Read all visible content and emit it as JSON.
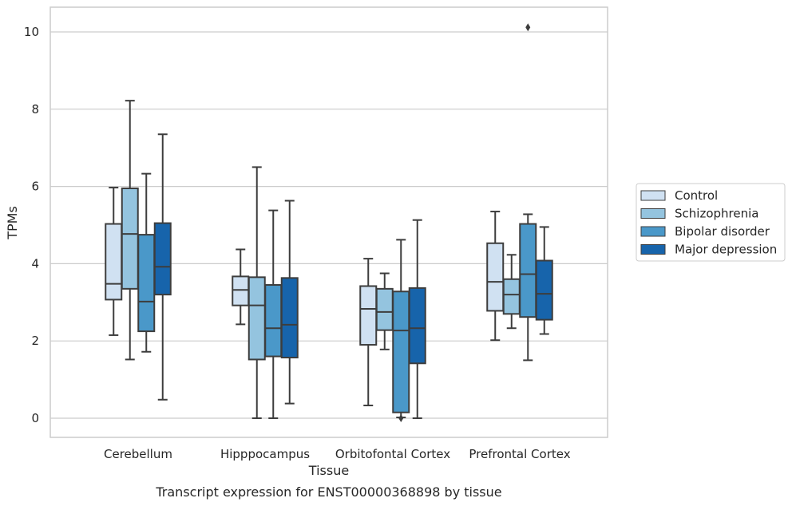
{
  "chart_data": {
    "type": "box",
    "title": "",
    "caption": "Transcript expression for ENST00000368898 by tissue",
    "xlabel": "Tissue",
    "ylabel": "TPMs",
    "ylim": [
      -0.5,
      10.6
    ],
    "yticks": [
      0,
      2,
      4,
      6,
      8,
      10
    ],
    "grid": "horizontal",
    "legend_position": "right",
    "categories": [
      "Cerebellum",
      "Hipppocampus",
      "Orbitofontal Cortex",
      "Prefrontal Cortex"
    ],
    "series": [
      {
        "name": "Control",
        "color": "#d0e1f2",
        "boxes": [
          {
            "whislo": 2.15,
            "q1": 3.07,
            "med": 3.48,
            "q3": 5.03,
            "whishi": 5.97,
            "fliers": []
          },
          {
            "whislo": 2.43,
            "q1": 2.92,
            "med": 3.32,
            "q3": 3.67,
            "whishi": 4.37,
            "fliers": []
          },
          {
            "whislo": 0.33,
            "q1": 1.9,
            "med": 2.83,
            "q3": 3.42,
            "whishi": 4.13,
            "fliers": []
          },
          {
            "whislo": 2.02,
            "q1": 2.78,
            "med": 3.53,
            "q3": 4.53,
            "whishi": 5.35,
            "fliers": []
          }
        ]
      },
      {
        "name": "Schizophrenia",
        "color": "#94c4df",
        "boxes": [
          {
            "whislo": 1.52,
            "q1": 3.35,
            "med": 4.77,
            "q3": 5.95,
            "whishi": 8.22,
            "fliers": []
          },
          {
            "whislo": 0.0,
            "q1": 1.52,
            "med": 2.92,
            "q3": 3.65,
            "whishi": 6.5,
            "fliers": []
          },
          {
            "whislo": 1.78,
            "q1": 2.28,
            "med": 2.75,
            "q3": 3.35,
            "whishi": 3.75,
            "fliers": []
          },
          {
            "whislo": 2.33,
            "q1": 2.7,
            "med": 3.2,
            "q3": 3.6,
            "whishi": 4.23,
            "fliers": []
          }
        ]
      },
      {
        "name": "Bipolar disorder",
        "color": "#4a98c9",
        "boxes": [
          {
            "whislo": 1.72,
            "q1": 2.25,
            "med": 3.02,
            "q3": 4.75,
            "whishi": 6.33,
            "fliers": []
          },
          {
            "whislo": 0.0,
            "q1": 1.6,
            "med": 2.33,
            "q3": 3.45,
            "whishi": 5.38,
            "fliers": []
          },
          {
            "whislo": 0.02,
            "q1": 0.15,
            "med": 2.27,
            "q3": 3.28,
            "whishi": 4.62,
            "fliers": [
              0.0
            ]
          },
          {
            "whislo": 1.5,
            "q1": 2.62,
            "med": 3.73,
            "q3": 5.03,
            "whishi": 5.28,
            "fliers": [
              10.12
            ]
          }
        ]
      },
      {
        "name": "Major depression",
        "color": "#1764ab",
        "boxes": [
          {
            "whislo": 0.48,
            "q1": 3.2,
            "med": 3.92,
            "q3": 5.05,
            "whishi": 7.35,
            "fliers": []
          },
          {
            "whislo": 0.38,
            "q1": 1.57,
            "med": 2.42,
            "q3": 3.63,
            "whishi": 5.63,
            "fliers": []
          },
          {
            "whislo": 0.0,
            "q1": 1.42,
            "med": 2.33,
            "q3": 3.37,
            "whishi": 5.13,
            "fliers": []
          },
          {
            "whislo": 2.18,
            "q1": 2.55,
            "med": 3.22,
            "q3": 4.08,
            "whishi": 4.95,
            "fliers": []
          }
        ]
      }
    ]
  }
}
